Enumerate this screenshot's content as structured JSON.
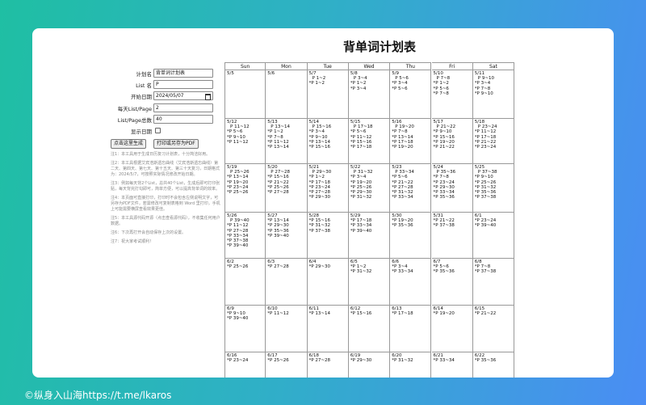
{
  "page": {
    "title": "背单词计划表",
    "footer": "©纵身入山海https://t.me/lkaros"
  },
  "form": {
    "fields": [
      {
        "label": "计划名",
        "value": "背单词计划表"
      },
      {
        "label": "List 名",
        "value": "P"
      },
      {
        "label": "开始日期",
        "value": "2024/05/07"
      },
      {
        "label": "每天List/Page",
        "value": "2"
      },
      {
        "label": "List/Page总数",
        "value": "40"
      },
      {
        "label": "显示日期"
      }
    ],
    "buttons": [
      "点击这里生成",
      "打印或另存为PDF"
    ],
    "notes": [
      "注1：本工具用于生成日历复习计划表，十分简洁好用。",
      "注2：本工具根据艾宾浩斯遗忘曲线（艾宾浩斯遗忘曲线）第二天、第四天、第七天、第十五天、第三十天复习，日期格式为：2024/5/7，可按照实际情况修改开始日期。",
      "注3：例如每天背2个List，总共40个List，生成后即可打印张贴，每天背完打勾即可，简单方便，可以提高背单词的效率。",
      "注4：本页面可直接打印，打印时不会包含左侧说明文字，可另存为PDF文件，若需修改可复制表格到 Word 里打印，手机上可能需要横屏查看效果更佳。",
      "注5：本工具源代码开源（点击查看源代码），不收集任何用户数据。",
      "注6：下次再打开会自动保存上次的设置。",
      "注7：祝大家考试顺利！"
    ]
  },
  "calendar": {
    "days": [
      "Sun",
      "Mon",
      "Tue",
      "Wed",
      "Thu",
      "Fri",
      "Sat"
    ],
    "weeks": [
      [
        {
          "date": "5/5",
          "lines": []
        },
        {
          "date": "5/6",
          "lines": []
        },
        {
          "date": "5/7",
          "lines": [
            "P 1~2",
            "*P 1~2"
          ]
        },
        {
          "date": "5/8",
          "lines": [
            "P 3~4",
            "*P 1~2",
            "*P 3~4"
          ]
        },
        {
          "date": "5/9",
          "lines": [
            "P 5~6",
            "*P 3~4",
            "*P 5~6"
          ]
        },
        {
          "date": "5/10",
          "lines": [
            "P 7~8",
            "*P 1~2",
            "*P 5~6",
            "*P 7~8"
          ]
        },
        {
          "date": "5/11",
          "lines": [
            "P 9~10",
            "*P 3~4",
            "*P 7~8",
            "*P 9~10"
          ]
        }
      ],
      [
        {
          "date": "5/12",
          "lines": [
            "P 11~12",
            "*P 5~6",
            "*P 9~10",
            "*P 11~12"
          ]
        },
        {
          "date": "5/13",
          "lines": [
            "P 13~14",
            "*P 1~2",
            "*P 7~8",
            "*P 11~12",
            "*P 13~14"
          ]
        },
        {
          "date": "5/14",
          "lines": [
            "P 15~16",
            "*P 3~4",
            "*P 9~10",
            "*P 13~14",
            "*P 15~16"
          ]
        },
        {
          "date": "5/15",
          "lines": [
            "P 17~18",
            "*P 5~6",
            "*P 11~12",
            "*P 15~16",
            "*P 17~18"
          ]
        },
        {
          "date": "5/16",
          "lines": [
            "P 19~20",
            "*P 7~8",
            "*P 13~14",
            "*P 17~18",
            "*P 19~20"
          ]
        },
        {
          "date": "5/17",
          "lines": [
            "P 21~22",
            "*P 9~10",
            "*P 15~16",
            "*P 19~20",
            "*P 21~22"
          ]
        },
        {
          "date": "5/18",
          "lines": [
            "P 23~24",
            "*P 11~12",
            "*P 17~18",
            "*P 21~22",
            "*P 23~24"
          ]
        }
      ],
      [
        {
          "date": "5/19",
          "lines": [
            "P 25~26",
            "*P 13~14",
            "*P 19~20",
            "*P 23~24",
            "*P 25~26"
          ]
        },
        {
          "date": "5/20",
          "lines": [
            "P 27~28",
            "*P 15~16",
            "*P 21~22",
            "*P 25~26",
            "*P 27~28"
          ]
        },
        {
          "date": "5/21",
          "lines": [
            "P 29~30",
            "*P 1~2",
            "*P 17~18",
            "*P 23~24",
            "*P 27~28",
            "*P 29~30"
          ]
        },
        {
          "date": "5/22",
          "lines": [
            "P 31~32",
            "*P 3~4",
            "*P 19~20",
            "*P 25~26",
            "*P 29~30",
            "*P 31~32"
          ]
        },
        {
          "date": "5/23",
          "lines": [
            "P 33~34",
            "*P 5~6",
            "*P 21~22",
            "*P 27~28",
            "*P 31~32",
            "*P 33~34"
          ]
        },
        {
          "date": "5/24",
          "lines": [
            "P 35~36",
            "*P 7~8",
            "*P 23~24",
            "*P 29~30",
            "*P 33~34",
            "*P 35~36"
          ]
        },
        {
          "date": "5/25",
          "lines": [
            "P 37~38",
            "*P 9~10",
            "*P 25~26",
            "*P 31~32",
            "*P 35~36",
            "*P 37~38"
          ]
        }
      ],
      [
        {
          "date": "5/26",
          "lines": [
            "P 39~40",
            "*P 11~12",
            "*P 27~28",
            "*P 33~34",
            "*P 37~38",
            "*P 39~40"
          ]
        },
        {
          "date": "5/27",
          "lines": [
            "*P 13~14",
            "*P 29~30",
            "*P 35~36",
            "*P 39~40"
          ]
        },
        {
          "date": "5/28",
          "lines": [
            "*P 15~16",
            "*P 31~32",
            "*P 37~38"
          ]
        },
        {
          "date": "5/29",
          "lines": [
            "*P 17~18",
            "*P 33~34",
            "*P 39~40"
          ]
        },
        {
          "date": "5/30",
          "lines": [
            "*P 19~20",
            "*P 35~36"
          ]
        },
        {
          "date": "5/31",
          "lines": [
            "*P 21~22",
            "*P 37~38"
          ]
        },
        {
          "date": "6/1",
          "lines": [
            "*P 23~24",
            "*P 39~40"
          ]
        }
      ],
      [
        {
          "date": "6/2",
          "lines": [
            "*P 25~26"
          ]
        },
        {
          "date": "6/3",
          "lines": [
            "*P 27~28"
          ]
        },
        {
          "date": "6/4",
          "lines": [
            "*P 29~30"
          ]
        },
        {
          "date": "6/5",
          "lines": [
            "*P 1~2",
            "*P 31~32"
          ]
        },
        {
          "date": "6/6",
          "lines": [
            "*P 3~4",
            "*P 33~34"
          ]
        },
        {
          "date": "6/7",
          "lines": [
            "*P 5~6",
            "*P 35~36"
          ]
        },
        {
          "date": "6/8",
          "lines": [
            "*P 7~8",
            "*P 37~38"
          ]
        }
      ],
      [
        {
          "date": "6/9",
          "lines": [
            "*P 9~10",
            "*P 39~40"
          ]
        },
        {
          "date": "6/10",
          "lines": [
            "*P 11~12"
          ]
        },
        {
          "date": "6/11",
          "lines": [
            "*P 13~14"
          ]
        },
        {
          "date": "6/12",
          "lines": [
            "*P 15~16"
          ]
        },
        {
          "date": "6/13",
          "lines": [
            "*P 17~18"
          ]
        },
        {
          "date": "6/14",
          "lines": [
            "*P 19~20"
          ]
        },
        {
          "date": "6/15",
          "lines": [
            "*P 21~22"
          ]
        }
      ],
      [
        {
          "date": "6/16",
          "lines": [
            "*P 23~24"
          ]
        },
        {
          "date": "6/17",
          "lines": [
            "*P 25~26"
          ]
        },
        {
          "date": "6/18",
          "lines": [
            "*P 27~28"
          ]
        },
        {
          "date": "6/19",
          "lines": [
            "*P 29~30"
          ]
        },
        {
          "date": "6/20",
          "lines": [
            "*P 31~32"
          ]
        },
        {
          "date": "6/21",
          "lines": [
            "*P 33~34"
          ]
        },
        {
          "date": "6/22",
          "lines": [
            "*P 35~36"
          ]
        }
      ]
    ]
  }
}
